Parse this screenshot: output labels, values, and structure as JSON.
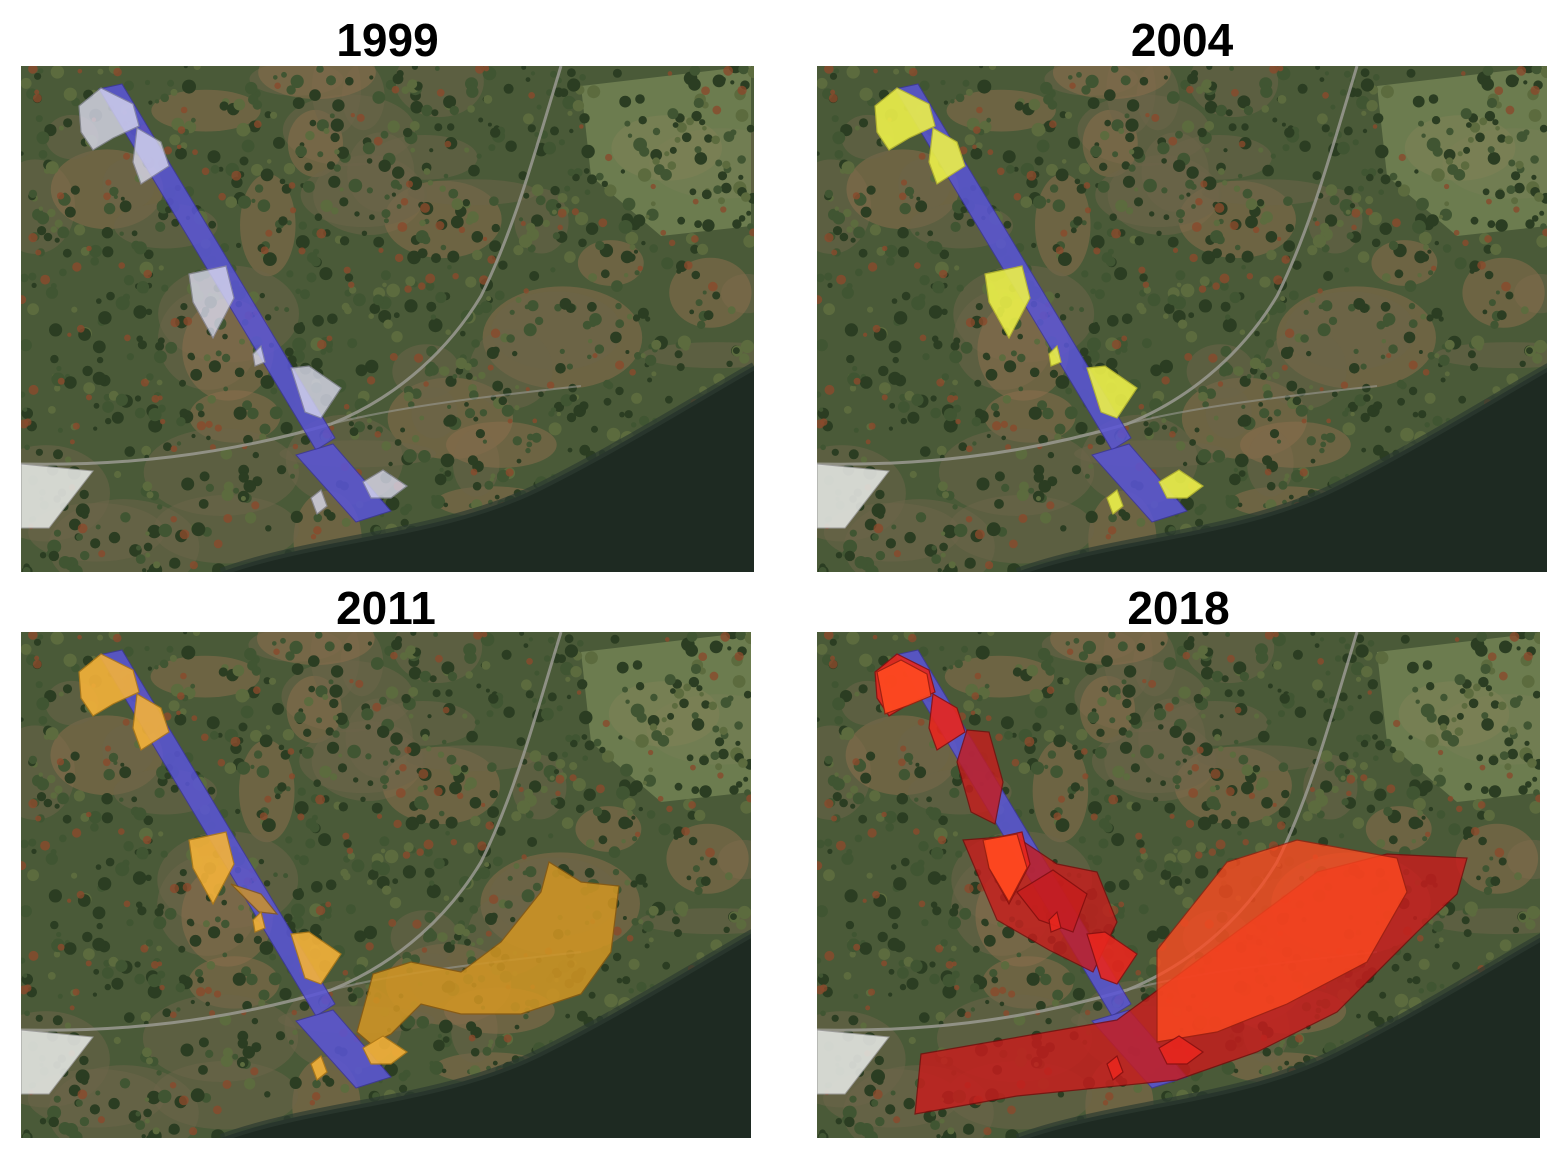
{
  "figure": {
    "panels": [
      {
        "year": "1999",
        "overlay_color": "#dcdcf0",
        "overlay_stroke": "#9090a0"
      },
      {
        "year": "2004",
        "overlay_color": "#ecf04a",
        "overlay_stroke": "#b8b830"
      },
      {
        "year": "2011",
        "overlay_color": "#f4b23a",
        "overlay_stroke": "#b07a18"
      },
      {
        "year": "2018",
        "overlay_color": "#e8261e",
        "overlay_stroke": "#8a1010"
      }
    ],
    "colors": {
      "transect": "#5a55d8",
      "forest_dark": "#2b3d22",
      "forest_mid": "#405532",
      "meadow_brown": "#8c7150",
      "river": "#1e2a22",
      "road": "#9a9a92",
      "pale_polygon": "#e2e4e0",
      "extent_2011": "#d29623",
      "extent_2018_dark": "#c81c1c",
      "extent_2018_bright": "#ff4a20"
    }
  }
}
